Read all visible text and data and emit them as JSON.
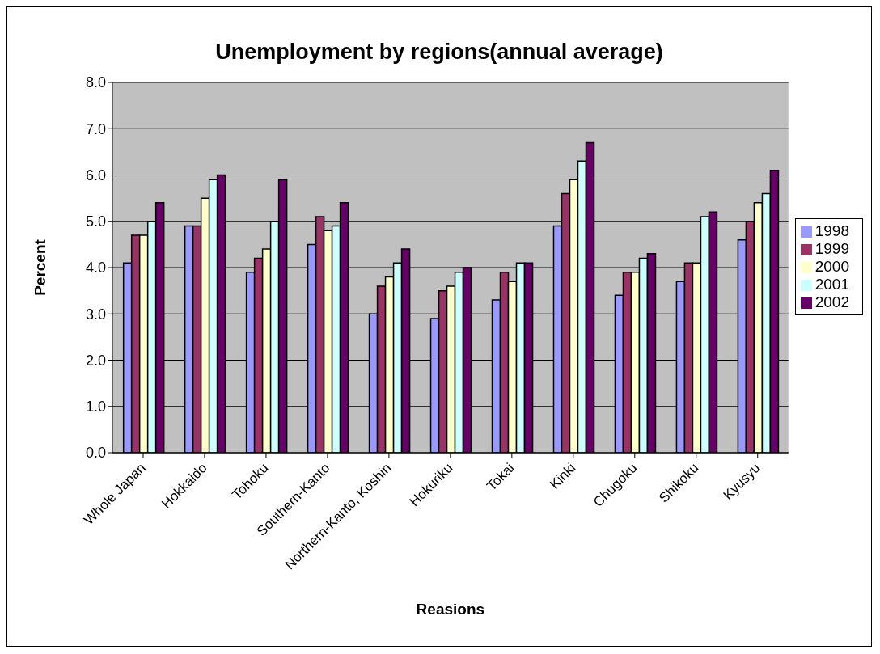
{
  "chart_data": {
    "type": "bar",
    "title": "Unemployment by regions(annual average)",
    "xlabel": "Reasions",
    "ylabel": "Percent",
    "categories": [
      "Whole Japan",
      "Hokkaido",
      "Tohoku",
      "Southern-Kanto",
      "Northern-Kanto, Koshin",
      "Hokuriku",
      "Tokai",
      "Kinki",
      "Chugoku",
      "Shikoku",
      "Kyusyu"
    ],
    "series": [
      {
        "name": "1998",
        "color": "#9999ff",
        "values": [
          4.1,
          4.9,
          3.9,
          4.5,
          3.0,
          2.9,
          3.3,
          4.9,
          3.4,
          3.7,
          4.6
        ]
      },
      {
        "name": "1999",
        "color": "#993366",
        "values": [
          4.7,
          4.9,
          4.2,
          5.1,
          3.6,
          3.5,
          3.9,
          5.6,
          3.9,
          4.1,
          5.0
        ]
      },
      {
        "name": "2000",
        "color": "#ffffcc",
        "values": [
          4.7,
          5.5,
          4.4,
          4.8,
          3.8,
          3.6,
          3.7,
          5.9,
          3.9,
          4.1,
          5.4
        ]
      },
      {
        "name": "2001",
        "color": "#ccffff",
        "values": [
          5.0,
          5.9,
          5.0,
          4.9,
          4.1,
          3.9,
          4.1,
          6.3,
          4.2,
          5.1,
          5.6
        ]
      },
      {
        "name": "2002",
        "color": "#660066",
        "values": [
          5.4,
          6.0,
          5.9,
          5.4,
          4.4,
          4.0,
          4.1,
          6.7,
          4.3,
          5.2,
          6.1
        ]
      }
    ],
    "ylim": [
      0,
      8
    ],
    "yticks": [
      {
        "value": 0,
        "label": "0.0"
      },
      {
        "value": 1,
        "label": "1.0"
      },
      {
        "value": 2,
        "label": "2.0"
      },
      {
        "value": 3,
        "label": "3.0"
      },
      {
        "value": 4,
        "label": "4.0"
      },
      {
        "value": 5,
        "label": "5.0"
      },
      {
        "value": 6,
        "label": "6.0"
      },
      {
        "value": 7,
        "label": "7.0"
      },
      {
        "value": 8,
        "label": "8.0"
      }
    ],
    "grid": "y",
    "legend": "right"
  }
}
